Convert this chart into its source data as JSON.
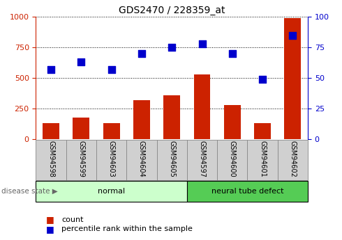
{
  "title": "GDS2470 / 228359_at",
  "samples": [
    "GSM94598",
    "GSM94599",
    "GSM94603",
    "GSM94604",
    "GSM94605",
    "GSM94597",
    "GSM94600",
    "GSM94601",
    "GSM94602"
  ],
  "counts": [
    130,
    175,
    130,
    320,
    360,
    530,
    280,
    130,
    990
  ],
  "percentiles": [
    57,
    63,
    57,
    70,
    75,
    78,
    70,
    49,
    85
  ],
  "groups": [
    {
      "label": "normal",
      "start": 0,
      "end": 5,
      "color": "#ccffcc",
      "border_color": "#66cc66"
    },
    {
      "label": "neural tube defect",
      "start": 5,
      "end": 9,
      "color": "#55cc55",
      "border_color": "#44aa44"
    }
  ],
  "bar_color": "#cc2200",
  "dot_color": "#0000cc",
  "ylim_left": [
    0,
    1000
  ],
  "ylim_right": [
    0,
    100
  ],
  "yticks_left": [
    0,
    250,
    500,
    750,
    1000
  ],
  "yticks_right": [
    0,
    25,
    50,
    75,
    100
  ],
  "bar_width": 0.55,
  "dot_size": 55,
  "disease_state_label": "disease state",
  "legend_count_label": "count",
  "legend_pct_label": "percentile rank within the sample",
  "tick_box_color": "#d0d0d0",
  "tick_box_edge_color": "#888888"
}
